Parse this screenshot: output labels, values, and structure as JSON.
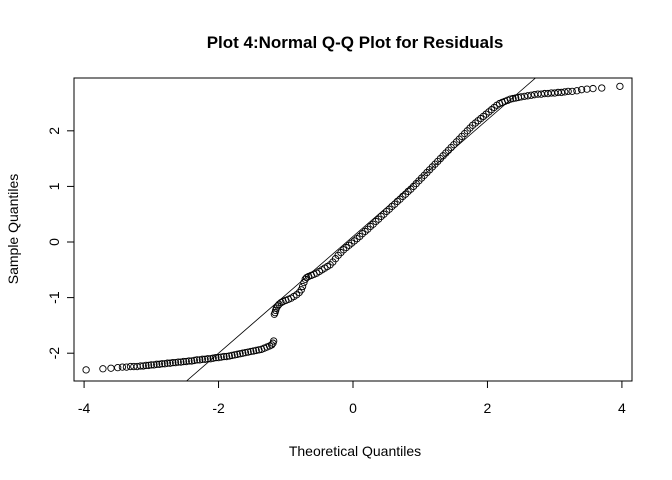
{
  "chart_data": {
    "type": "scatter",
    "title": "Plot 4:Normal Q-Q Plot for Residuals",
    "xlabel": "Theoretical Quantiles",
    "ylabel": "Sample Quantiles",
    "xlim": [
      -4.15,
      4.15
    ],
    "ylim": [
      -2.5,
      2.95
    ],
    "x_ticks": [
      -4,
      -2,
      0,
      2,
      4
    ],
    "y_ticks": [
      -2,
      -1,
      0,
      1,
      2
    ],
    "x_tick_labels": [
      "-4",
      "-2",
      "0",
      "2",
      "4"
    ],
    "y_tick_labels": [
      "-2",
      "-1",
      "0",
      "1",
      "2"
    ],
    "grid": false,
    "reference_line": {
      "slope": 1.05,
      "intercept": 0.1
    },
    "points": [
      [
        -3.97,
        -2.3
      ],
      [
        -3.72,
        -2.28
      ],
      [
        -3.6,
        -2.27
      ],
      [
        -3.5,
        -2.26
      ],
      [
        -3.43,
        -2.25
      ],
      [
        -3.37,
        -2.25
      ],
      [
        -3.31,
        -2.24
      ],
      [
        -3.26,
        -2.24
      ],
      [
        -3.21,
        -2.24
      ],
      [
        -3.16,
        -2.23
      ],
      [
        -3.12,
        -2.23
      ],
      [
        -3.08,
        -2.22
      ],
      [
        -3.04,
        -2.22
      ],
      [
        -3.0,
        -2.21
      ],
      [
        -2.96,
        -2.21
      ],
      [
        -2.92,
        -2.2
      ],
      [
        -2.88,
        -2.2
      ],
      [
        -2.84,
        -2.19
      ],
      [
        -2.8,
        -2.19
      ],
      [
        -2.76,
        -2.18
      ],
      [
        -2.72,
        -2.18
      ],
      [
        -2.68,
        -2.17
      ],
      [
        -2.64,
        -2.17
      ],
      [
        -2.6,
        -2.16
      ],
      [
        -2.56,
        -2.16
      ],
      [
        -2.52,
        -2.15
      ],
      [
        -2.48,
        -2.15
      ],
      [
        -2.44,
        -2.14
      ],
      [
        -2.4,
        -2.14
      ],
      [
        -2.36,
        -2.13
      ],
      [
        -2.32,
        -2.12
      ],
      [
        -2.28,
        -2.12
      ],
      [
        -2.24,
        -2.11
      ],
      [
        -2.2,
        -2.11
      ],
      [
        -2.16,
        -2.1
      ],
      [
        -2.12,
        -2.1
      ],
      [
        -2.08,
        -2.09
      ],
      [
        -2.04,
        -2.08
      ],
      [
        -2.0,
        -2.08
      ],
      [
        -1.96,
        -2.07
      ],
      [
        -1.92,
        -2.06
      ],
      [
        -1.88,
        -2.06
      ],
      [
        -1.84,
        -2.05
      ],
      [
        -1.8,
        -2.04
      ],
      [
        -1.76,
        -2.03
      ],
      [
        -1.72,
        -2.02
      ],
      [
        -1.68,
        -2.01
      ],
      [
        -1.64,
        -2.0
      ],
      [
        -1.6,
        -1.99
      ],
      [
        -1.56,
        -1.98
      ],
      [
        -1.52,
        -1.97
      ],
      [
        -1.48,
        -1.96
      ],
      [
        -1.44,
        -1.95
      ],
      [
        -1.4,
        -1.94
      ],
      [
        -1.36,
        -1.93
      ],
      [
        -1.32,
        -1.91
      ],
      [
        -1.28,
        -1.89
      ],
      [
        -1.24,
        -1.87
      ],
      [
        -1.21,
        -1.85
      ],
      [
        -1.19,
        -1.82
      ],
      [
        -1.18,
        -1.78
      ],
      [
        -1.17,
        -1.3
      ],
      [
        -1.16,
        -1.27
      ],
      [
        -1.15,
        -1.23
      ],
      [
        -1.14,
        -1.19
      ],
      [
        -1.12,
        -1.15
      ],
      [
        -1.1,
        -1.12
      ],
      [
        -1.07,
        -1.09
      ],
      [
        -1.04,
        -1.07
      ],
      [
        -1.0,
        -1.05
      ],
      [
        -0.96,
        -1.03
      ],
      [
        -0.92,
        -1.01
      ],
      [
        -0.88,
        -0.98
      ],
      [
        -0.84,
        -0.95
      ],
      [
        -0.8,
        -0.91
      ],
      [
        -0.77,
        -0.86
      ],
      [
        -0.75,
        -0.8
      ],
      [
        -0.73,
        -0.73
      ],
      [
        -0.71,
        -0.67
      ],
      [
        -0.69,
        -0.64
      ],
      [
        -0.66,
        -0.62
      ],
      [
        -0.62,
        -0.6
      ],
      [
        -0.58,
        -0.58
      ],
      [
        -0.54,
        -0.56
      ],
      [
        -0.5,
        -0.53
      ],
      [
        -0.46,
        -0.5
      ],
      [
        -0.42,
        -0.47
      ],
      [
        -0.38,
        -0.44
      ],
      [
        -0.34,
        -0.41
      ],
      [
        -0.3,
        -0.36
      ],
      [
        -0.26,
        -0.3
      ],
      [
        -0.22,
        -0.24
      ],
      [
        -0.18,
        -0.19
      ],
      [
        -0.14,
        -0.14
      ],
      [
        -0.1,
        -0.1
      ],
      [
        -0.06,
        -0.06
      ],
      [
        -0.02,
        -0.02
      ],
      [
        0.02,
        0.02
      ],
      [
        0.06,
        0.06
      ],
      [
        0.1,
        0.1
      ],
      [
        0.14,
        0.15
      ],
      [
        0.18,
        0.19
      ],
      [
        0.22,
        0.23
      ],
      [
        0.26,
        0.28
      ],
      [
        0.3,
        0.32
      ],
      [
        0.34,
        0.37
      ],
      [
        0.38,
        0.41
      ],
      [
        0.42,
        0.46
      ],
      [
        0.46,
        0.5
      ],
      [
        0.5,
        0.55
      ],
      [
        0.54,
        0.59
      ],
      [
        0.58,
        0.64
      ],
      [
        0.62,
        0.68
      ],
      [
        0.66,
        0.73
      ],
      [
        0.7,
        0.77
      ],
      [
        0.74,
        0.82
      ],
      [
        0.78,
        0.86
      ],
      [
        0.82,
        0.91
      ],
      [
        0.86,
        0.95
      ],
      [
        0.9,
        1.0
      ],
      [
        0.94,
        1.05
      ],
      [
        0.98,
        1.1
      ],
      [
        1.02,
        1.15
      ],
      [
        1.06,
        1.2
      ],
      [
        1.1,
        1.25
      ],
      [
        1.14,
        1.3
      ],
      [
        1.18,
        1.35
      ],
      [
        1.22,
        1.4
      ],
      [
        1.26,
        1.45
      ],
      [
        1.3,
        1.5
      ],
      [
        1.34,
        1.55
      ],
      [
        1.38,
        1.6
      ],
      [
        1.42,
        1.65
      ],
      [
        1.46,
        1.7
      ],
      [
        1.5,
        1.75
      ],
      [
        1.54,
        1.8
      ],
      [
        1.58,
        1.85
      ],
      [
        1.62,
        1.9
      ],
      [
        1.66,
        1.95
      ],
      [
        1.7,
        2.0
      ],
      [
        1.74,
        2.05
      ],
      [
        1.78,
        2.1
      ],
      [
        1.82,
        2.14
      ],
      [
        1.86,
        2.18
      ],
      [
        1.9,
        2.22
      ],
      [
        1.94,
        2.26
      ],
      [
        1.98,
        2.3
      ],
      [
        2.02,
        2.34
      ],
      [
        2.06,
        2.38
      ],
      [
        2.1,
        2.42
      ],
      [
        2.14,
        2.46
      ],
      [
        2.18,
        2.49
      ],
      [
        2.22,
        2.51
      ],
      [
        2.26,
        2.53
      ],
      [
        2.3,
        2.55
      ],
      [
        2.34,
        2.57
      ],
      [
        2.38,
        2.58
      ],
      [
        2.42,
        2.59
      ],
      [
        2.46,
        2.6
      ],
      [
        2.5,
        2.61
      ],
      [
        2.55,
        2.62
      ],
      [
        2.6,
        2.63
      ],
      [
        2.65,
        2.64
      ],
      [
        2.7,
        2.65
      ],
      [
        2.75,
        2.66
      ],
      [
        2.8,
        2.66
      ],
      [
        2.85,
        2.67
      ],
      [
        2.9,
        2.67
      ],
      [
        2.95,
        2.68
      ],
      [
        3.0,
        2.68
      ],
      [
        3.05,
        2.69
      ],
      [
        3.1,
        2.69
      ],
      [
        3.15,
        2.7
      ],
      [
        3.2,
        2.71
      ],
      [
        3.26,
        2.71
      ],
      [
        3.33,
        2.72
      ],
      [
        3.4,
        2.74
      ],
      [
        3.48,
        2.75
      ],
      [
        3.57,
        2.76
      ],
      [
        3.7,
        2.77
      ],
      [
        3.97,
        2.8
      ]
    ]
  }
}
